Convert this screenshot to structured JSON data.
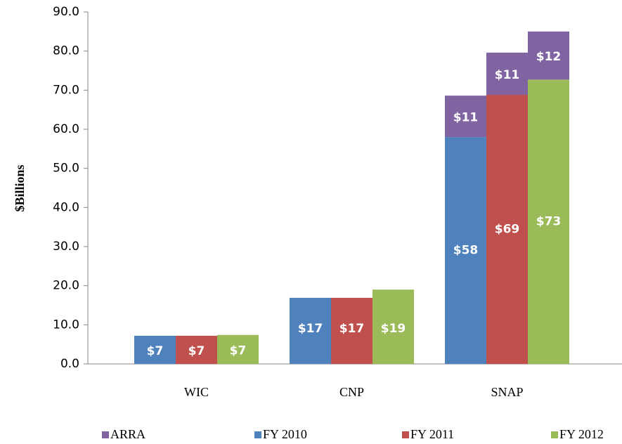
{
  "chart_data": {
    "type": "stacked-grouped-bar",
    "y_label": "$Billions",
    "categories": [
      "WIC",
      "CNP",
      "SNAP"
    ],
    "series": [
      {
        "name": "ARRA",
        "color": "#8064a2",
        "values": [
          [
            null,
            null,
            10.6
          ],
          [
            null,
            null,
            10.8
          ],
          [
            null,
            null,
            12.3
          ]
        ],
        "value_labels": [
          [
            null,
            null,
            "$11"
          ],
          [
            null,
            null,
            "$11"
          ],
          [
            null,
            null,
            "$12"
          ]
        ]
      },
      {
        "name": "FY 2010",
        "color": "#4f81bd",
        "values": [
          7.2,
          16.9,
          58.0
        ],
        "value_labels": [
          "$7",
          "$17",
          "$58"
        ]
      },
      {
        "name": "FY 2011",
        "color": "#c0504d",
        "values": [
          7.2,
          16.9,
          68.8
        ],
        "value_labels": [
          "$7",
          "$17",
          "$69"
        ]
      },
      {
        "name": "FY 2012",
        "color": "#9bbb59",
        "values": [
          7.4,
          19.0,
          72.7
        ],
        "value_labels": [
          "$7",
          "$19",
          "$73"
        ]
      }
    ],
    "ylim": [
      0,
      90
    ],
    "yticks": [
      {
        "value": 0,
        "label": "0.0"
      },
      {
        "value": 10,
        "label": "10.0"
      },
      {
        "value": 20,
        "label": "20.0"
      },
      {
        "value": 30,
        "label": "30.0"
      },
      {
        "value": 40,
        "label": "40.0"
      },
      {
        "value": 50,
        "label": "50.0"
      },
      {
        "value": 60,
        "label": "60.0"
      },
      {
        "value": 70,
        "label": "70.0"
      },
      {
        "value": 80,
        "label": "80.0"
      },
      {
        "value": 90,
        "label": "90.0"
      }
    ],
    "legend": "bottom"
  }
}
